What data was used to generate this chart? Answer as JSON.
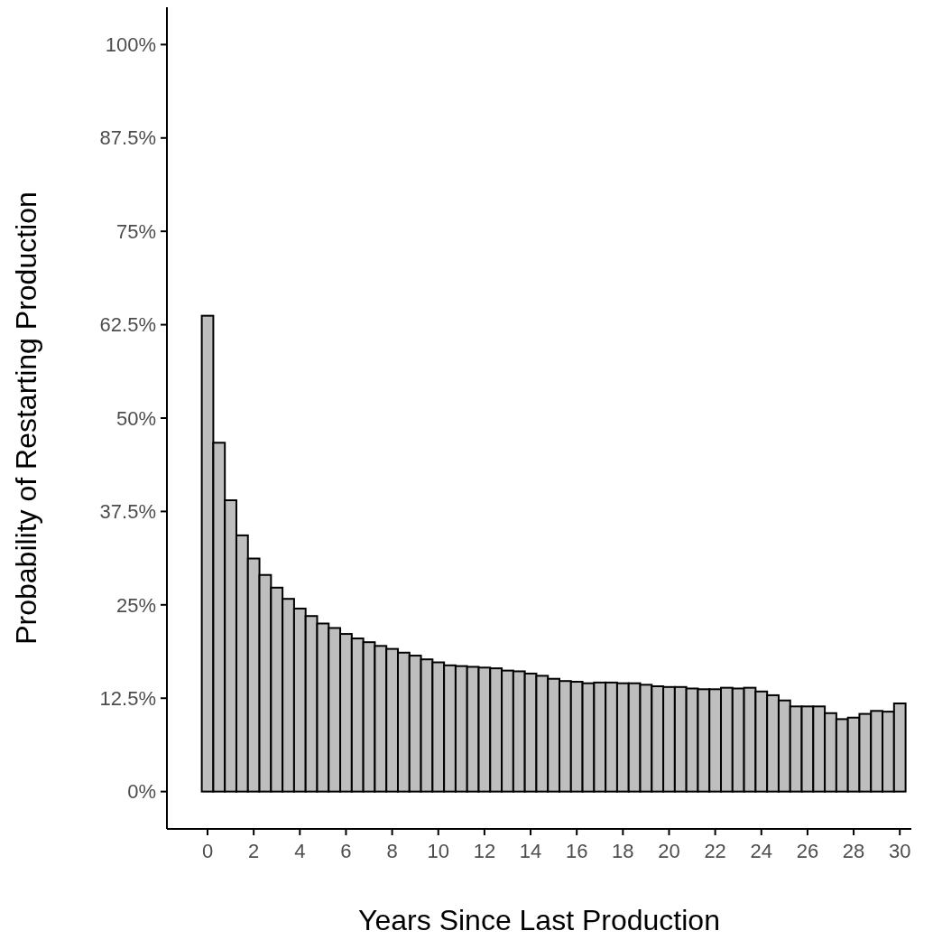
{
  "chart_data": {
    "type": "bar",
    "xlabel": "Years Since Last Production",
    "ylabel": "Probability of Restarting Production",
    "x": [
      0,
      0.5,
      1,
      1.5,
      2,
      2.5,
      3,
      3.5,
      4,
      4.5,
      5,
      5.5,
      6,
      6.5,
      7,
      7.5,
      8,
      8.5,
      9,
      9.5,
      10,
      10.5,
      11,
      11.5,
      12,
      12.5,
      13,
      13.5,
      14,
      14.5,
      15,
      15.5,
      16,
      16.5,
      17,
      17.5,
      18,
      18.5,
      19,
      19.5,
      20,
      20.5,
      21,
      21.5,
      22,
      22.5,
      23,
      23.5,
      24,
      24.5,
      25,
      25.5,
      26,
      26.5,
      27,
      27.5,
      28,
      28.5,
      29,
      29.5,
      30
    ],
    "values": [
      63.7,
      46.7,
      39.0,
      34.3,
      31.2,
      29.0,
      27.3,
      25.8,
      24.5,
      23.5,
      22.5,
      21.9,
      21.1,
      20.5,
      20.0,
      19.5,
      19.1,
      18.6,
      18.2,
      17.7,
      17.3,
      16.9,
      16.8,
      16.7,
      16.6,
      16.5,
      16.2,
      16.1,
      15.8,
      15.5,
      15.1,
      14.8,
      14.7,
      14.5,
      14.6,
      14.6,
      14.5,
      14.5,
      14.3,
      14.1,
      14.0,
      14.0,
      13.8,
      13.7,
      13.7,
      13.9,
      13.8,
      13.9,
      13.4,
      12.9,
      12.2,
      11.4,
      11.4,
      11.4,
      10.5,
      9.7,
      9.9,
      10.4,
      10.8,
      10.7,
      11.8
    ],
    "color": "#bebebe",
    "xlim": [
      -1.76,
      30.5
    ],
    "xticks": [
      0,
      2,
      4,
      6,
      8,
      10,
      12,
      14,
      16,
      18,
      20,
      22,
      24,
      26,
      28,
      30
    ],
    "ylim": [
      -5,
      105
    ],
    "yticks": [
      {
        "value": 0,
        "label": "0%"
      },
      {
        "value": 12.5,
        "label": "12.5%"
      },
      {
        "value": 25,
        "label": "25%"
      },
      {
        "value": 37.5,
        "label": "37.5%"
      },
      {
        "value": 50,
        "label": "50%"
      },
      {
        "value": 62.5,
        "label": "62.5%"
      },
      {
        "value": 75,
        "label": "75%"
      },
      {
        "value": 87.5,
        "label": "87.5%"
      },
      {
        "value": 100,
        "label": "100%"
      }
    ],
    "grid": false
  }
}
